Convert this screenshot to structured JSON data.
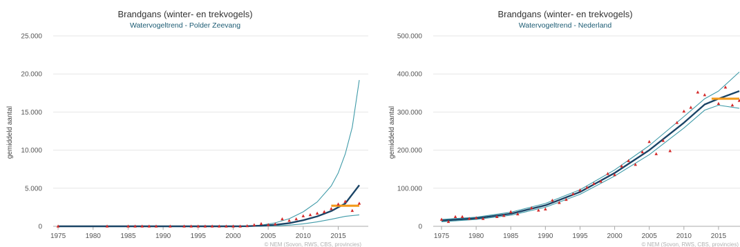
{
  "chart_data": [
    {
      "type": "line",
      "title": "Brandgans (winter- en trekvogels)",
      "subtitle": "Watervogeltrend - Polder Zeevang",
      "xlabel": "",
      "ylabel": "gemiddeld aantal",
      "xlim": [
        1974.5,
        2018.3
      ],
      "ylim": [
        0,
        25000
      ],
      "x_ticks": [
        1975,
        1980,
        1985,
        1990,
        1995,
        2000,
        2005,
        2010,
        2015
      ],
      "y_ticks": [
        0,
        5000,
        10000,
        15000,
        20000,
        25000
      ],
      "y_tick_labels": [
        "0",
        "5.000",
        "10.000",
        "15.000",
        "20.000",
        "25.000"
      ],
      "credit": "© NEM (Sovon, RWS, CBS, provincies)",
      "grid": true,
      "legend": "none",
      "series": [
        {
          "role": "trend",
          "color": "#1a4466",
          "points": [
            [
              1975,
              0
            ],
            [
              1985,
              0
            ],
            [
              1995,
              0
            ],
            [
              2000,
              0
            ],
            [
              2002,
              20
            ],
            [
              2004,
              80
            ],
            [
              2006,
              200
            ],
            [
              2008,
              420
            ],
            [
              2010,
              800
            ],
            [
              2012,
              1300
            ],
            [
              2014,
              2000
            ],
            [
              2016,
              3000
            ],
            [
              2018,
              5400
            ]
          ]
        },
        {
          "role": "upper",
          "color": "#3e9aa8",
          "points": [
            [
              1975,
              0
            ],
            [
              1995,
              0
            ],
            [
              2000,
              0
            ],
            [
              2002,
              40
            ],
            [
              2004,
              150
            ],
            [
              2006,
              450
            ],
            [
              2008,
              1000
            ],
            [
              2010,
              1900
            ],
            [
              2012,
              3200
            ],
            [
              2014,
              5300
            ],
            [
              2015,
              7000
            ],
            [
              2016,
              9500
            ],
            [
              2017,
              13000
            ],
            [
              2018,
              19200
            ]
          ]
        },
        {
          "role": "lower",
          "color": "#3e9aa8",
          "points": [
            [
              1975,
              0
            ],
            [
              1995,
              0
            ],
            [
              2000,
              0
            ],
            [
              2004,
              20
            ],
            [
              2006,
              60
            ],
            [
              2008,
              150
            ],
            [
              2010,
              330
            ],
            [
              2012,
              580
            ],
            [
              2014,
              920
            ],
            [
              2016,
              1300
            ],
            [
              2018,
              1500
            ]
          ]
        },
        {
          "role": "average",
          "color": "#f39a1a",
          "points": [
            [
              2014,
              2700
            ],
            [
              2018,
              2700
            ]
          ]
        }
      ],
      "counts": [
        [
          1975,
          0
        ],
        [
          1982,
          0
        ],
        [
          1985,
          0
        ],
        [
          1986,
          0
        ],
        [
          1987,
          0
        ],
        [
          1988,
          0
        ],
        [
          1989,
          0
        ],
        [
          1991,
          0
        ],
        [
          1993,
          0
        ],
        [
          1994,
          0
        ],
        [
          1995,
          0
        ],
        [
          1996,
          0
        ],
        [
          1997,
          0
        ],
        [
          1998,
          0
        ],
        [
          1999,
          0
        ],
        [
          2000,
          0
        ],
        [
          2001,
          0
        ],
        [
          2002,
          50
        ],
        [
          2003,
          180
        ],
        [
          2004,
          330
        ],
        [
          2005,
          200
        ],
        [
          2006,
          280
        ],
        [
          2007,
          950
        ],
        [
          2008,
          750
        ],
        [
          2009,
          950
        ],
        [
          2010,
          1350
        ],
        [
          2011,
          1500
        ],
        [
          2012,
          1700
        ],
        [
          2013,
          1900
        ],
        [
          2014,
          2300
        ],
        [
          2015,
          2900
        ],
        [
          2016,
          3250
        ],
        [
          2017,
          2050
        ],
        [
          2018,
          3000
        ]
      ]
    },
    {
      "type": "line",
      "title": "Brandgans (winter- en trekvogels)",
      "subtitle": "Watervogeltrend - Nederland",
      "xlabel": "",
      "ylabel": "gemiddeld aantal",
      "xlim": [
        1974.0,
        2018.3
      ],
      "ylim": [
        0,
        500000
      ],
      "x_ticks": [
        1975,
        1980,
        1985,
        1990,
        1995,
        2000,
        2005,
        2010,
        2015
      ],
      "y_ticks": [
        0,
        100000,
        200000,
        300000,
        400000,
        500000
      ],
      "y_tick_labels": [
        "0",
        "100.000",
        "200.000",
        "300.000",
        "400.000",
        "500.000"
      ],
      "credit": "© NEM (Sovon, RWS, CBS, provincies)",
      "grid": true,
      "legend": "none",
      "series": [
        {
          "role": "trend",
          "color": "#1a4466",
          "points": [
            [
              1975,
              15000
            ],
            [
              1980,
              21000
            ],
            [
              1985,
              33000
            ],
            [
              1990,
              55000
            ],
            [
              1995,
              90000
            ],
            [
              2000,
              140000
            ],
            [
              2005,
              200000
            ],
            [
              2010,
              272000
            ],
            [
              2013,
              320000
            ],
            [
              2015,
              335000
            ],
            [
              2018,
              355000
            ]
          ]
        },
        {
          "role": "upper",
          "color": "#3e9aa8",
          "points": [
            [
              1975,
              18000
            ],
            [
              1980,
              24000
            ],
            [
              1985,
              37000
            ],
            [
              1990,
              60000
            ],
            [
              1995,
              96000
            ],
            [
              2000,
              148000
            ],
            [
              2005,
              212000
            ],
            [
              2010,
              288000
            ],
            [
              2013,
              335000
            ],
            [
              2015,
              355000
            ],
            [
              2018,
              405000
            ]
          ]
        },
        {
          "role": "lower",
          "color": "#3e9aa8",
          "points": [
            [
              1975,
              12000
            ],
            [
              1980,
              18000
            ],
            [
              1985,
              29000
            ],
            [
              1990,
              50000
            ],
            [
              1995,
              84000
            ],
            [
              2000,
              132000
            ],
            [
              2005,
              188000
            ],
            [
              2010,
              258000
            ],
            [
              2013,
              305000
            ],
            [
              2015,
              318000
            ],
            [
              2018,
              310000
            ]
          ]
        },
        {
          "role": "average",
          "color": "#f39a1a",
          "points": [
            [
              2014,
              335000
            ],
            [
              2018,
              335000
            ]
          ]
        }
      ],
      "counts": [
        [
          1975,
          18000
        ],
        [
          1976,
          12000
        ],
        [
          1977,
          25000
        ],
        [
          1978,
          25000
        ],
        [
          1979,
          20000
        ],
        [
          1980,
          22000
        ],
        [
          1981,
          20000
        ],
        [
          1983,
          25000
        ],
        [
          1984,
          28000
        ],
        [
          1985,
          38000
        ],
        [
          1986,
          32000
        ],
        [
          1988,
          48000
        ],
        [
          1989,
          42000
        ],
        [
          1990,
          45000
        ],
        [
          1991,
          68000
        ],
        [
          1992,
          62000
        ],
        [
          1993,
          70000
        ],
        [
          1994,
          85000
        ],
        [
          1995,
          95000
        ],
        [
          1996,
          102000
        ],
        [
          1997,
          112000
        ],
        [
          1998,
          118000
        ],
        [
          1999,
          138000
        ],
        [
          2000,
          135000
        ],
        [
          2001,
          158000
        ],
        [
          2002,
          172000
        ],
        [
          2003,
          162000
        ],
        [
          2004,
          195000
        ],
        [
          2005,
          222000
        ],
        [
          2006,
          190000
        ],
        [
          2007,
          225000
        ],
        [
          2008,
          198000
        ],
        [
          2009,
          272000
        ],
        [
          2010,
          302000
        ],
        [
          2011,
          312000
        ],
        [
          2012,
          352000
        ],
        [
          2013,
          345000
        ],
        [
          2015,
          322000
        ],
        [
          2016,
          365000
        ],
        [
          2017,
          318000
        ],
        [
          2018,
          330000
        ]
      ]
    }
  ]
}
